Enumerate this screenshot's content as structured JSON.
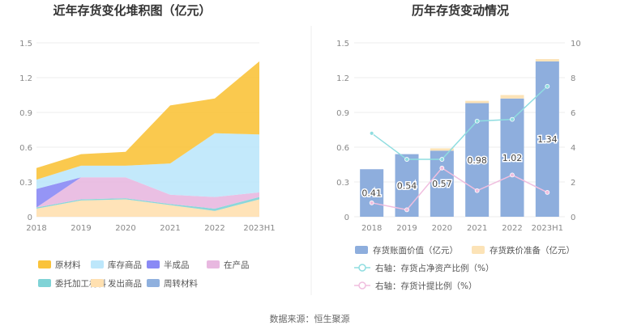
{
  "source": "数据来源：恒生聚源",
  "chart_data": [
    {
      "type": "area",
      "title": "近年存货变化堆积图（亿元）",
      "categories": [
        "2018",
        "2019",
        "2020",
        "2021",
        "2022",
        "2023H1"
      ],
      "ylim": [
        0,
        1.5
      ],
      "yticks": [
        "0",
        "0.3",
        "0.6",
        "0.9",
        "1.2",
        "1.5"
      ],
      "grid": true,
      "legend_position": "bottom",
      "series": [
        {
          "name": "原材料",
          "color": "#FAC33B",
          "values": [
            0.1,
            0.1,
            0.12,
            0.5,
            0.3,
            0.63
          ]
        },
        {
          "name": "库存商品",
          "color": "#BDE7FB",
          "values": [
            0.08,
            0.1,
            0.1,
            0.27,
            0.55,
            0.5
          ]
        },
        {
          "name": "半成品",
          "color": "#8A8AF5",
          "values": [
            0.16,
            0.0,
            0.0,
            0.0,
            0.0,
            0.0
          ]
        },
        {
          "name": "在产品",
          "color": "#E8B8E0",
          "values": [
            0.0,
            0.19,
            0.18,
            0.08,
            0.1,
            0.04
          ]
        },
        {
          "name": "委托加工材料",
          "color": "#7FD3D6",
          "values": [
            0.01,
            0.01,
            0.01,
            0.01,
            0.02,
            0.02
          ]
        },
        {
          "name": "发出商品",
          "color": "#FFE0B0",
          "values": [
            0.07,
            0.14,
            0.15,
            0.1,
            0.05,
            0.15
          ]
        },
        {
          "name": "周转材料",
          "color": "#8FB0DE",
          "values": [
            0.0,
            0.0,
            0.0,
            0.0,
            0.0,
            0.0
          ]
        }
      ]
    },
    {
      "type": "bar",
      "title": "历年存货变动情况",
      "categories": [
        "2018",
        "2019",
        "2020",
        "2021",
        "2022",
        "2023H1"
      ],
      "ylim": [
        0,
        1.5
      ],
      "yticks": [
        "0",
        "0.3",
        "0.6",
        "0.9",
        "1.2",
        "1.5"
      ],
      "y2lim": [
        0,
        10
      ],
      "y2ticks": [
        "0",
        "2",
        "4",
        "6",
        "8",
        "10"
      ],
      "grid": true,
      "legend_position": "bottom",
      "bars": [
        {
          "name": "存货账面价值（亿元）",
          "color": "#8EAEDD",
          "values": [
            0.41,
            0.54,
            0.57,
            0.98,
            1.02,
            1.34
          ],
          "labels": [
            "0.41",
            "0.54",
            "0.57",
            "0.98",
            "1.02",
            "1.34"
          ]
        },
        {
          "name": "存货跌价准备（亿元）",
          "color": "#FCE3B7",
          "values": [
            0.0,
            0.0,
            0.02,
            0.02,
            0.03,
            0.02
          ]
        }
      ],
      "lines": [
        {
          "name": "右轴：存货占净资产比例（%）",
          "color": "#8FDDE0",
          "values": [
            4.8,
            3.3,
            3.3,
            5.5,
            5.6,
            7.5
          ]
        },
        {
          "name": "右轴：存货计提比例（%）",
          "color": "#F0BEDF",
          "values": [
            0.8,
            0.4,
            2.8,
            1.5,
            2.4,
            1.4
          ]
        }
      ]
    }
  ]
}
